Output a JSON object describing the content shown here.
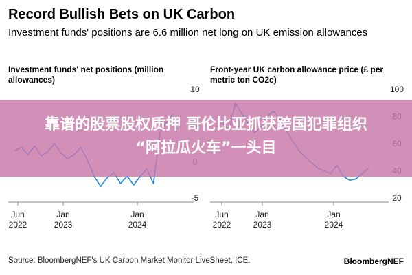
{
  "title": "Record Bullish Bets on UK Carbon",
  "subtitle": "Investment funds' positions are 6.6 million net long on UK emission allowances",
  "chart_data": [
    {
      "type": "line",
      "title": "Investment funds' net positions (million allowances)",
      "x_ticks": [
        "Jun 2022",
        "Jan 2023",
        "Jan 2024"
      ],
      "y_ticks": [
        10,
        5,
        0,
        -5
      ],
      "ylim": [
        -5,
        10
      ],
      "series": [
        {
          "color": "#1e88e5",
          "x": [
            "2022-05",
            "2022-06",
            "2022-07",
            "2022-08",
            "2022-09",
            "2022-10",
            "2022-11",
            "2022-12",
            "2023-01",
            "2023-02",
            "2023-03",
            "2023-04",
            "2023-05",
            "2023-06",
            "2023-07",
            "2023-08",
            "2023-09",
            "2023-10",
            "2023-11",
            "2023-12",
            "2024-01",
            "2024-02",
            "2024-03",
            "2024-04",
            "2024-05"
          ],
          "values": [
            1.5,
            2.0,
            1.0,
            2.2,
            0.8,
            1.4,
            2.5,
            1.2,
            0.4,
            1.0,
            2.0,
            0.2,
            -2.0,
            -3.4,
            -2.2,
            -1.5,
            -3.0,
            -2.0,
            -3.2,
            -2.0,
            -1.0,
            -3.0,
            4.0,
            5.5,
            6.6
          ]
        }
      ]
    },
    {
      "type": "line",
      "title": "Front-year UK carbon allowance price (£ per metric ton CO2e)",
      "x_ticks": [
        "Jun 2022",
        "Jan 2023",
        "Jan 2024"
      ],
      "y_ticks": [
        100,
        80,
        60,
        40,
        20
      ],
      "ylim": [
        20,
        100
      ],
      "series": [
        {
          "color": "#1e88e5",
          "x": [
            "2022-05",
            "2022-06",
            "2022-07",
            "2022-08",
            "2022-09",
            "2022-10",
            "2022-11",
            "2022-12",
            "2023-01",
            "2023-02",
            "2023-03",
            "2023-04",
            "2023-05",
            "2023-06",
            "2023-07",
            "2023-08",
            "2023-09",
            "2023-10",
            "2023-11",
            "2023-12",
            "2024-01",
            "2024-02",
            "2024-03",
            "2024-04",
            "2024-05"
          ],
          "values": [
            80,
            75,
            70,
            90,
            82,
            75,
            68,
            72,
            80,
            84,
            78,
            70,
            62,
            55,
            50,
            46,
            42,
            40,
            38,
            44,
            36,
            33,
            34,
            38,
            42
          ]
        }
      ]
    }
  ],
  "overlay": {
    "line1": "靠谱的股票股权质押 哥伦比亚抓获跨国犯罪组织",
    "line2": "“阿拉瓜火车”一头目"
  },
  "footer": {
    "source": "Source: BloombergNEF's UK Carbon Market Monitor LiveSheet, ICE.",
    "brand": "BloombergNEF"
  },
  "colors": {
    "line": "#1e88e5",
    "banner": "#c878aa",
    "text": "#000000"
  }
}
